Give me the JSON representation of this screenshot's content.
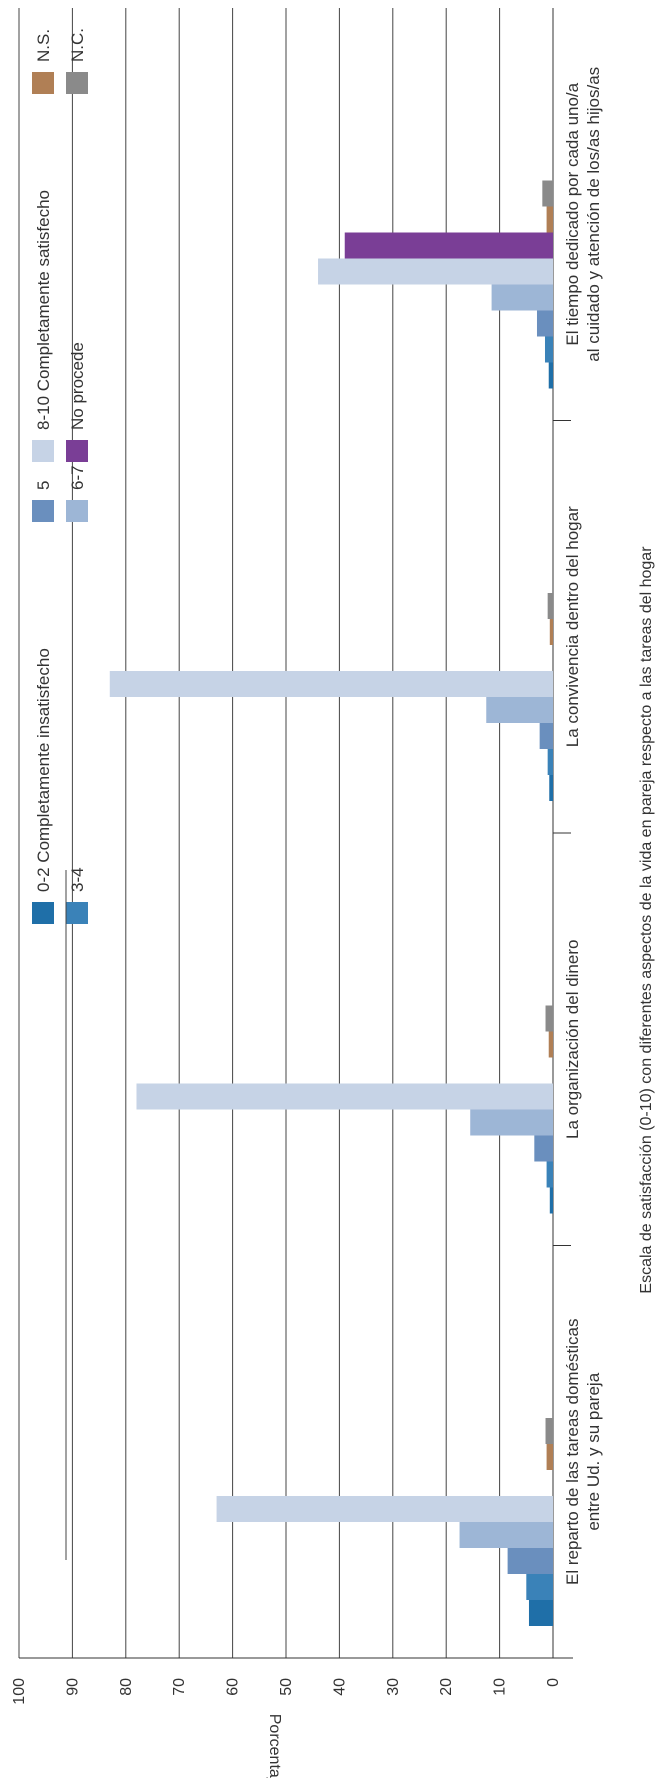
{
  "chart_data": {
    "type": "bar",
    "orientation": "rotated-90-counterclockwise",
    "xlabel": "Escala de satisfacción (0-10) con diferentes aspectos de la vida en pareja respecto a las tareas del hogar",
    "ylabel": "Porcentaje",
    "ylim": [
      0,
      100
    ],
    "yticks": [
      "0",
      "10",
      "20",
      "30",
      "40",
      "50",
      "60",
      "70",
      "80",
      "90",
      "100"
    ],
    "grid": true,
    "legend_position": "top",
    "categories": [
      [
        "El reparto de las tareas domésticas",
        "entre Ud. y su pareja"
      ],
      [
        "La organización del dinero"
      ],
      [
        "La convivencia dentro del hogar"
      ],
      [
        "El tiempo dedicado por cada uno/a",
        "al cuidado y atención de los/as hijos/as"
      ]
    ],
    "series": [
      {
        "name": "0-2 Completamente insatisfecho",
        "color": "#1f6fa8",
        "values": [
          4.5,
          0.6,
          0.7,
          0.8
        ]
      },
      {
        "name": "3-4",
        "color": "#3a82b8",
        "values": [
          5.0,
          1.2,
          1.0,
          1.5
        ]
      },
      {
        "name": "5",
        "color": "#6a8fbe",
        "values": [
          8.5,
          3.5,
          2.5,
          3.0
        ]
      },
      {
        "name": "6-7",
        "color": "#9db6d6",
        "values": [
          17.5,
          15.5,
          12.5,
          11.5
        ]
      },
      {
        "name": "8-10 Completamente satisfecho",
        "color": "#c6d3e6",
        "values": [
          63.0,
          78.0,
          83.0,
          44.0
        ]
      },
      {
        "name": "No procede",
        "color": "#7a3e96",
        "values": [
          0,
          0,
          0,
          39.0
        ]
      },
      {
        "name": "N.S.",
        "color": "#b07f55",
        "values": [
          1.2,
          0.8,
          0.6,
          1.2
        ]
      },
      {
        "name": "N.C.",
        "color": "#8a8a8a",
        "values": [
          1.4,
          1.4,
          1.0,
          2.0
        ]
      }
    ]
  }
}
